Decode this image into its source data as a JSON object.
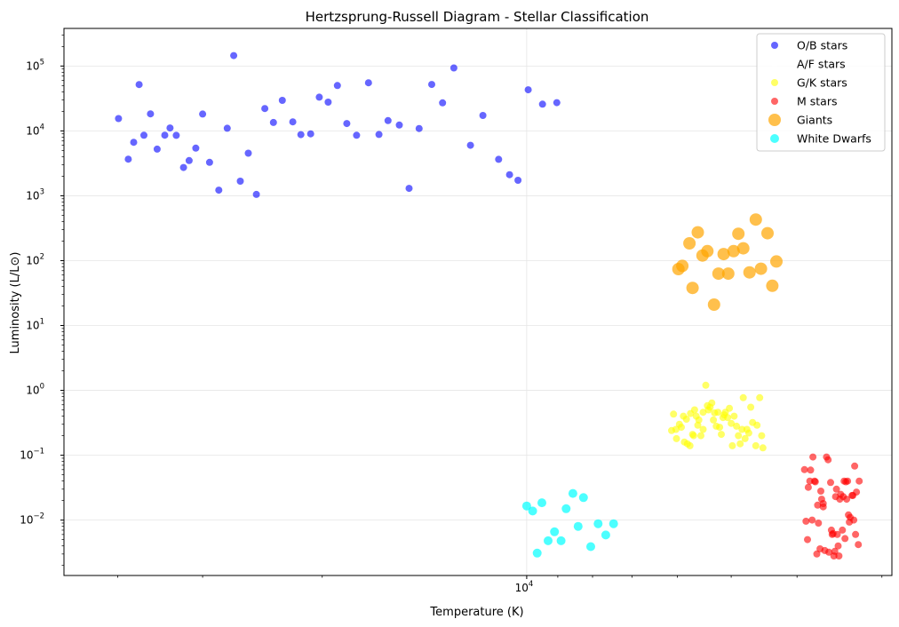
{
  "chart_data": {
    "type": "scatter",
    "title": "Hertzsprung-Russell Diagram - Stellar Classification",
    "xlabel": "Temperature (K)",
    "ylabel": "Luminosity (L/L⊙)",
    "x_scale": "log",
    "y_scale": "log",
    "x_inverted": true,
    "xlim": [
      48000,
      2900
    ],
    "ylim": [
      0.0014,
      380000
    ],
    "x_major_ticks": [
      {
        "value": 10000,
        "label": "10",
        "exp": "4"
      }
    ],
    "x_minor_ticks": [
      40000,
      30000,
      20000,
      9000,
      8000,
      7000,
      6000,
      5000,
      4000,
      3000
    ],
    "y_ticks": [
      {
        "value": 0.01,
        "label": "10",
        "exp": "−2"
      },
      {
        "value": 0.1,
        "label": "10",
        "exp": "−1"
      },
      {
        "value": 1,
        "label": "10",
        "exp": "0"
      },
      {
        "value": 10,
        "label": "10",
        "exp": "1"
      },
      {
        "value": 100,
        "label": "10",
        "exp": "2"
      },
      {
        "value": 1000,
        "label": "10",
        "exp": "3"
      },
      {
        "value": 10000,
        "label": "10",
        "exp": "4"
      },
      {
        "value": 100000,
        "label": "10",
        "exp": "5"
      }
    ],
    "grid": true,
    "legend_position": "top-right",
    "series": [
      {
        "name": "O/B stars",
        "color": "#0000ff",
        "alpha": 0.6,
        "size": "small",
        "points": [
          [
            39900,
            15500
          ],
          [
            38600,
            3670
          ],
          [
            37900,
            6680
          ],
          [
            37200,
            51900
          ],
          [
            36600,
            8570
          ],
          [
            35800,
            18300
          ],
          [
            35000,
            5240
          ],
          [
            34100,
            8580
          ],
          [
            33500,
            11100
          ],
          [
            32800,
            8540
          ],
          [
            32000,
            2730
          ],
          [
            31400,
            3490
          ],
          [
            30700,
            5420
          ],
          [
            30000,
            18200
          ],
          [
            29300,
            3270
          ],
          [
            28400,
            1220
          ],
          [
            27600,
            11000
          ],
          [
            27000,
            145000
          ],
          [
            26400,
            1680
          ],
          [
            25700,
            4530
          ],
          [
            25000,
            1050
          ],
          [
            24300,
            22100
          ],
          [
            23600,
            13500
          ],
          [
            22900,
            29600
          ],
          [
            22100,
            13800
          ],
          [
            21500,
            8770
          ],
          [
            20800,
            9000
          ],
          [
            20200,
            33100
          ],
          [
            19600,
            27800
          ],
          [
            19000,
            50000
          ],
          [
            18400,
            13000
          ],
          [
            17800,
            8560
          ],
          [
            17100,
            55200
          ],
          [
            16500,
            8800
          ],
          [
            16000,
            14400
          ],
          [
            15400,
            12300
          ],
          [
            14900,
            1300
          ],
          [
            14400,
            10900
          ],
          [
            13800,
            52000
          ],
          [
            13300,
            27100
          ],
          [
            12800,
            93400
          ],
          [
            12100,
            6000
          ],
          [
            11600,
            17300
          ],
          [
            11000,
            3640
          ],
          [
            10600,
            2110
          ],
          [
            10300,
            1730
          ],
          [
            9950,
            43000
          ],
          [
            9480,
            25800
          ],
          [
            9030,
            27200
          ]
        ]
      },
      {
        "name": "A/F stars",
        "color": "#ffffff",
        "alpha": 0.6,
        "size": "small",
        "points": []
      },
      {
        "name": "G/K stars",
        "color": "#ffff00",
        "alpha": 0.6,
        "size": "small",
        "points": [
          [
            6080,
            0.43
          ],
          [
            6120,
            0.24
          ],
          [
            6020,
            0.18
          ],
          [
            6030,
            0.25
          ],
          [
            5960,
            0.3
          ],
          [
            5920,
            0.27
          ],
          [
            5880,
            0.4
          ],
          [
            5860,
            0.16
          ],
          [
            5820,
            0.36
          ],
          [
            5800,
            0.15
          ],
          [
            5750,
            0.14
          ],
          [
            5740,
            0.44
          ],
          [
            5700,
            0.21
          ],
          [
            5680,
            0.2
          ],
          [
            5660,
            0.5
          ],
          [
            5630,
            0.4
          ],
          [
            5600,
            0.29
          ],
          [
            5580,
            0.35
          ],
          [
            5540,
            0.2
          ],
          [
            5500,
            0.46
          ],
          [
            5500,
            0.25
          ],
          [
            5450,
            1.2
          ],
          [
            5420,
            0.58
          ],
          [
            5400,
            0.5
          ],
          [
            5370,
            0.55
          ],
          [
            5340,
            0.64
          ],
          [
            5310,
            0.35
          ],
          [
            5290,
            0.45
          ],
          [
            5260,
            0.28
          ],
          [
            5230,
            0.46
          ],
          [
            5200,
            0.27
          ],
          [
            5170,
            0.21
          ],
          [
            5140,
            0.38
          ],
          [
            5120,
            0.42
          ],
          [
            5100,
            0.46
          ],
          [
            5060,
            0.38
          ],
          [
            5030,
            0.53
          ],
          [
            5000,
            0.31
          ],
          [
            4980,
            0.14
          ],
          [
            4950,
            0.4
          ],
          [
            4910,
            0.28
          ],
          [
            4880,
            0.2
          ],
          [
            4850,
            0.15
          ],
          [
            4820,
            0.25
          ],
          [
            4800,
            0.77
          ],
          [
            4770,
            0.18
          ],
          [
            4740,
            0.25
          ],
          [
            4710,
            0.22
          ],
          [
            4680,
            0.55
          ],
          [
            4650,
            0.32
          ],
          [
            4600,
            0.14
          ],
          [
            4580,
            0.29
          ],
          [
            4540,
            0.77
          ],
          [
            4510,
            0.2
          ],
          [
            4490,
            0.13
          ]
        ]
      },
      {
        "name": "M stars",
        "color": "#ff0000",
        "alpha": 0.6,
        "size": "small",
        "points": [
          [
            3900,
            0.06
          ],
          [
            3880,
            0.0096
          ],
          [
            3860,
            0.005
          ],
          [
            3850,
            0.032
          ],
          [
            3830,
            0.04
          ],
          [
            3820,
            0.059
          ],
          [
            3800,
            0.01
          ],
          [
            3790,
            0.094
          ],
          [
            3770,
            0.04
          ],
          [
            3760,
            0.039
          ],
          [
            3740,
            0.003
          ],
          [
            3730,
            0.017
          ],
          [
            3720,
            0.009
          ],
          [
            3700,
            0.0036
          ],
          [
            3690,
            0.028
          ],
          [
            3680,
            0.021
          ],
          [
            3660,
            0.016
          ],
          [
            3660,
            0.018
          ],
          [
            3640,
            0.0034
          ],
          [
            3620,
            0.094
          ],
          [
            3600,
            0.085
          ],
          [
            3590,
            0.0032
          ],
          [
            3570,
            0.038
          ],
          [
            3560,
            0.007
          ],
          [
            3550,
            0.006
          ],
          [
            3540,
            0.0062
          ],
          [
            3530,
            0.0028
          ],
          [
            3520,
            0.0033
          ],
          [
            3510,
            0.023
          ],
          [
            3500,
            0.03
          ],
          [
            3490,
            0.006
          ],
          [
            3480,
            0.004
          ],
          [
            3470,
            0.0028
          ],
          [
            3460,
            0.021
          ],
          [
            3450,
            0.025
          ],
          [
            3430,
            0.007
          ],
          [
            3420,
            0.023
          ],
          [
            3410,
            0.04
          ],
          [
            3400,
            0.0052
          ],
          [
            3390,
            0.039
          ],
          [
            3380,
            0.021
          ],
          [
            3370,
            0.04
          ],
          [
            3360,
            0.012
          ],
          [
            3350,
            0.0093
          ],
          [
            3340,
            0.011
          ],
          [
            3320,
            0.024
          ],
          [
            3310,
            0.024
          ],
          [
            3300,
            0.01
          ],
          [
            3290,
            0.068
          ],
          [
            3280,
            0.006
          ],
          [
            3270,
            0.027
          ],
          [
            3250,
            0.0042
          ],
          [
            3240,
            0.04
          ]
        ]
      },
      {
        "name": "Giants",
        "color": "#ffa500",
        "alpha": 0.7,
        "size": "large",
        "points": [
          [
            5980,
            74
          ],
          [
            5900,
            83
          ],
          [
            5760,
            185
          ],
          [
            5700,
            38
          ],
          [
            5600,
            273
          ],
          [
            5510,
            120
          ],
          [
            5420,
            140
          ],
          [
            5300,
            21
          ],
          [
            5220,
            63
          ],
          [
            5130,
            126
          ],
          [
            5050,
            63
          ],
          [
            4960,
            140
          ],
          [
            4880,
            260
          ],
          [
            4800,
            155
          ],
          [
            4700,
            66
          ],
          [
            4600,
            430
          ],
          [
            4520,
            75
          ],
          [
            4420,
            265
          ],
          [
            4350,
            41
          ],
          [
            4290,
            97
          ]
        ]
      },
      {
        "name": "White Dwarfs",
        "color": "#00ffff",
        "alpha": 0.7,
        "size": "medium",
        "points": [
          [
            10000,
            0.0165
          ],
          [
            9800,
            0.0138
          ],
          [
            9650,
            0.0031
          ],
          [
            9500,
            0.0185
          ],
          [
            9300,
            0.0048
          ],
          [
            9100,
            0.0066
          ],
          [
            8900,
            0.0048
          ],
          [
            8750,
            0.015
          ],
          [
            8550,
            0.0258
          ],
          [
            8400,
            0.008
          ],
          [
            8250,
            0.0222
          ],
          [
            8050,
            0.0039
          ],
          [
            7850,
            0.0088
          ],
          [
            7650,
            0.0059
          ],
          [
            7450,
            0.0088
          ]
        ]
      }
    ]
  }
}
